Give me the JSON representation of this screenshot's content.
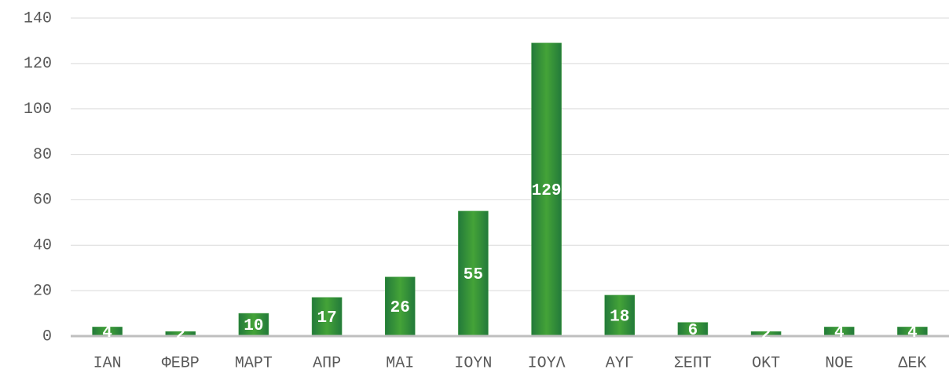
{
  "chart_data": {
    "type": "bar",
    "categories": [
      "ΙΑΝ",
      "ΦΕΒΡ",
      "ΜΑΡΤ",
      "ΑΠΡ",
      "ΜΑΙ",
      "ΙΟΥΝ",
      "ΙΟΥΛ",
      "ΑΥΓ",
      "ΣΕΠΤ",
      "ΟΚΤ",
      "ΝΟΕ",
      "ΔΕΚ"
    ],
    "values": [
      4,
      2,
      10,
      17,
      26,
      55,
      129,
      18,
      6,
      2,
      4,
      4
    ],
    "color": "#3a9a3a",
    "ylim": [
      0,
      140
    ],
    "yticks": [
      0,
      20,
      40,
      60,
      80,
      100,
      120,
      140
    ],
    "grid": true
  }
}
